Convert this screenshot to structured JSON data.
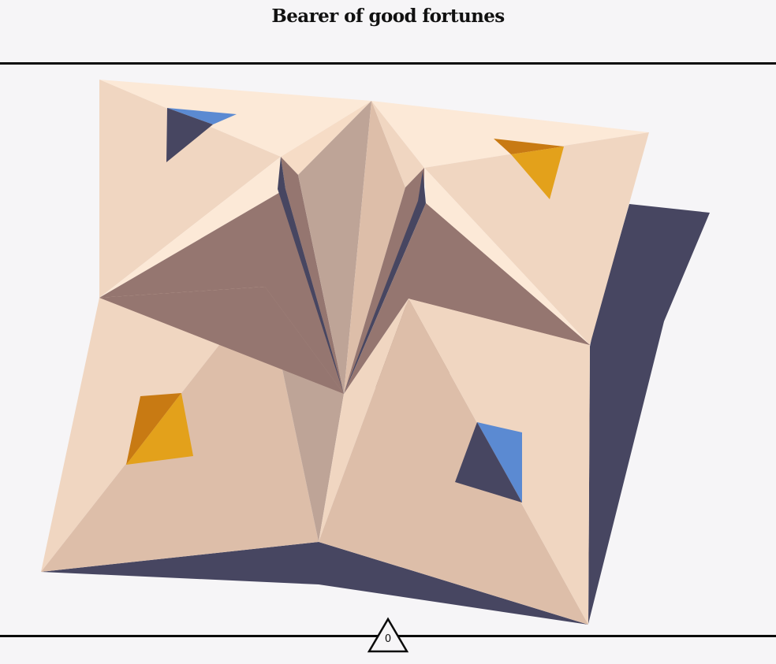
{
  "title": "Bearer of good fortunes",
  "counter": {
    "value": "0"
  },
  "colors": {
    "background": "#f6f5f7",
    "paper_light": "#fce9d7",
    "paper_mid": "#f0d6c1",
    "paper_shade": "#ddbea9",
    "paper_dim": "#bea497",
    "fold_dark": "#957670",
    "shadow": "#474661",
    "marker_blue": "#5b8ad2",
    "marker_orange_light": "#e3a11b",
    "marker_orange_dark": "#c87a13"
  },
  "flaps": [
    {
      "name": "top-left-flap",
      "marker": "blue"
    },
    {
      "name": "top-right-flap",
      "marker": "orange"
    },
    {
      "name": "bottom-left-flap",
      "marker": "orange"
    },
    {
      "name": "bottom-right-flap",
      "marker": "blue"
    }
  ]
}
